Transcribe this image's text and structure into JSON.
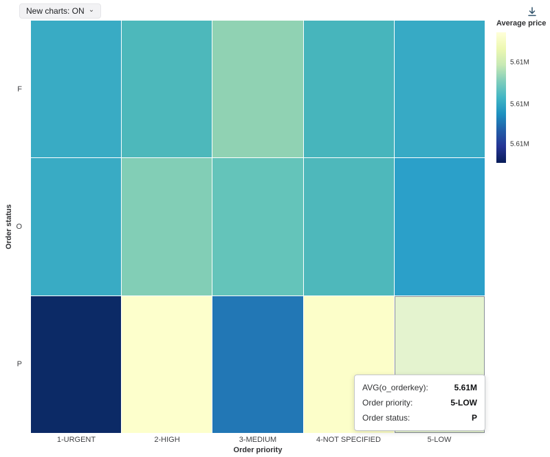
{
  "toolbar": {
    "new_charts_label": "New charts: ON"
  },
  "icons": {
    "chevron_down": "⌄"
  },
  "chart_data": {
    "type": "heatmap",
    "xlabel": "Order priority",
    "ylabel": "Order status",
    "x_categories": [
      "1-URGENT",
      "2-HIGH",
      "3-MEDIUM",
      "4-NOT SPECIFIED",
      "5-LOW"
    ],
    "y_categories": [
      "F",
      "O",
      "P"
    ],
    "cell_colors": [
      [
        "#39abc4",
        "#4db8bb",
        "#90d2b3",
        "#47b5bc",
        "#37aac5"
      ],
      [
        "#39abc4",
        "#82ceb6",
        "#64c4ba",
        "#4eb8bb",
        "#2ba0c9"
      ],
      [
        "#0c2a66",
        "#fdffcc",
        "#2277b5",
        "#fcfec9",
        "#e4f3cf"
      ]
    ],
    "hovered_cell": {
      "row_index": 2,
      "col_index": 4,
      "x": "5-LOW",
      "y": "P",
      "value": "5.61M"
    },
    "legend": {
      "title": "Average price",
      "position": "right",
      "tick_labels": [
        "5.61M",
        "5.61M",
        "5.61M"
      ],
      "tick_positions_pct": [
        23,
        55,
        86
      ],
      "gradient_colors": [
        "#ffffd9",
        "#edf8b1",
        "#c7e9b4",
        "#7fcdbb",
        "#41b6c4",
        "#1d91c0",
        "#225ea8",
        "#253494",
        "#081d58"
      ]
    }
  },
  "tooltip": {
    "rows": [
      {
        "label": "AVG(o_orderkey):",
        "value": "5.61M"
      },
      {
        "label": "Order priority:",
        "value": "5-LOW"
      },
      {
        "label": "Order status:",
        "value": "P"
      }
    ]
  }
}
